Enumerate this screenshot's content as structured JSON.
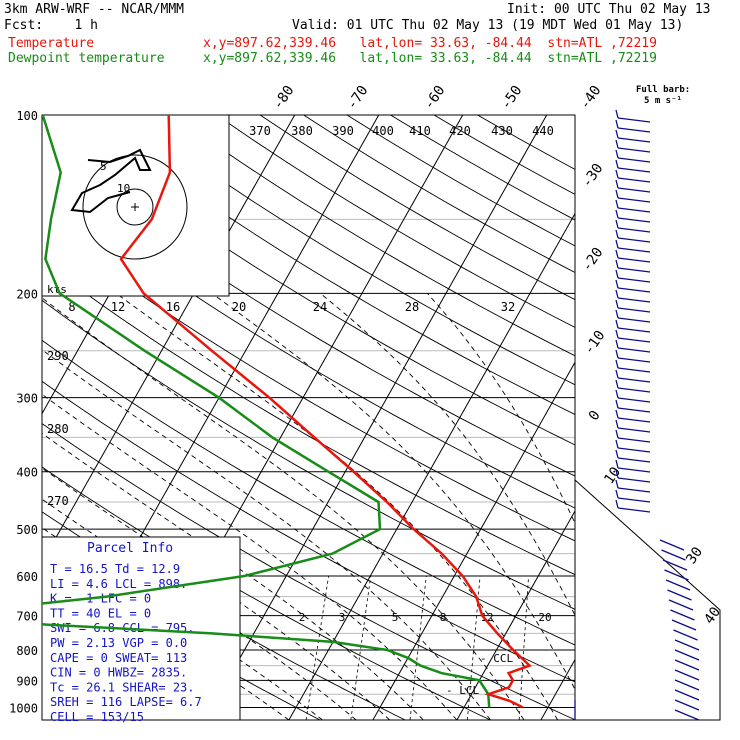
{
  "header": {
    "model": "3km ARW-WRF -- NCAR/MMM",
    "init": "Init: 00 UTC Thu 02 May 13",
    "fcst": "Fcst:    1 h",
    "valid": "Valid: 01 UTC Thu 02 May 13 (19 MDT Wed 01 May 13)",
    "temp_label": "Temperature",
    "temp_info": "x,y=897.62,339.46   lat,lon= 33.63, -84.44  stn=ATL ,72219",
    "dew_label": "Dewpoint temperature",
    "dew_info": "x,y=897.62,339.46   lat,lon= 33.63, -84.44  stn=ATL ,72219"
  },
  "colors": {
    "temperature": "#e8160c",
    "dewpoint": "#178c17",
    "parcel": "#1414c8",
    "wind": "#0c0c8c",
    "isobar": "#000000",
    "background": "#ffffff"
  },
  "wind_legend": {
    "title": "Full barb:",
    "value": "5 m s⁻¹"
  },
  "parcel_info": {
    "title": "Parcel Info",
    "rows": [
      "T   =   16.5  Td =  12.9",
      "LI  =    4.6  LCL =  898.",
      "K   =     -1  LFC =     0",
      "TT  =     40  EL  =     0",
      "SWI =    6.8  CCL =  795.",
      "PW  =   2.13  VGP =   0.0",
      "CAPE =     0  SWEAT=   113",
      "CIN  =     0  HWBZ= 2835.",
      "Tc  =   26.1  SHEAR=   23.",
      "SREH =   116  LAPSE=   6.7",
      "CELL = 153/15"
    ]
  },
  "annotations": {
    "ccl": "- CCL",
    "lcl": "- LCL",
    "hodo_unit": "kts",
    "hodo_ring1": "5",
    "hodo_ring2": "10"
  },
  "chart_data": {
    "type": "skew-t",
    "pressure_levels": [
      100,
      200,
      300,
      400,
      500,
      600,
      700,
      800,
      900,
      1000
    ],
    "pressure_labels": [
      "100",
      "200",
      "300",
      "400",
      "500",
      "600",
      "700",
      "800",
      "900",
      "1000"
    ],
    "isotherm_labels": [
      "-80",
      "-70",
      "-60",
      "-50",
      "-40",
      "-30",
      "-20",
      "-10",
      "0",
      "10",
      "30",
      "40"
    ],
    "theta_e_labels": [
      "370",
      "380",
      "390",
      "400",
      "410",
      "420",
      "430",
      "440"
    ],
    "theta_labels": [
      "290",
      "280",
      "270"
    ],
    "mixing_ratio_labels": [
      "2",
      "3",
      "5",
      "8",
      "12",
      "20"
    ],
    "mixing_ratio_top_labels": [
      "8",
      "12",
      "16",
      "20",
      "24",
      "28",
      "32"
    ],
    "temperature_profile": [
      {
        "p": 1000,
        "t": 17
      },
      {
        "p": 975,
        "t": 15
      },
      {
        "p": 950,
        "t": 12
      },
      {
        "p": 925,
        "t": 14
      },
      {
        "p": 900,
        "t": 14
      },
      {
        "p": 875,
        "t": 13
      },
      {
        "p": 850,
        "t": 15
      },
      {
        "p": 800,
        "t": 12
      },
      {
        "p": 750,
        "t": 9
      },
      {
        "p": 700,
        "t": 6
      },
      {
        "p": 650,
        "t": 4
      },
      {
        "p": 600,
        "t": 1
      },
      {
        "p": 550,
        "t": -3
      },
      {
        "p": 500,
        "t": -8
      },
      {
        "p": 450,
        "t": -13
      },
      {
        "p": 400,
        "t": -19
      },
      {
        "p": 350,
        "t": -26
      },
      {
        "p": 300,
        "t": -34
      },
      {
        "p": 250,
        "t": -44
      },
      {
        "p": 200,
        "t": -56
      },
      {
        "p": 175,
        "t": -61
      },
      {
        "p": 150,
        "t": -60
      },
      {
        "p": 125,
        "t": -61
      },
      {
        "p": 100,
        "t": -65
      }
    ],
    "dewpoint_profile": [
      {
        "p": 1000,
        "t": 13
      },
      {
        "p": 950,
        "t": 12
      },
      {
        "p": 900,
        "t": 10
      },
      {
        "p": 875,
        "t": 5
      },
      {
        "p": 850,
        "t": 2
      },
      {
        "p": 825,
        "t": 0
      },
      {
        "p": 800,
        "t": -3
      },
      {
        "p": 775,
        "t": -10
      },
      {
        "p": 750,
        "t": -25
      },
      {
        "p": 725,
        "t": -45
      },
      {
        "p": 700,
        "t": -60
      },
      {
        "p": 650,
        "t": -40
      },
      {
        "p": 600,
        "t": -25
      },
      {
        "p": 550,
        "t": -16
      },
      {
        "p": 500,
        "t": -12
      },
      {
        "p": 450,
        "t": -14
      },
      {
        "p": 400,
        "t": -22
      },
      {
        "p": 350,
        "t": -31
      },
      {
        "p": 300,
        "t": -40
      },
      {
        "p": 250,
        "t": -52
      },
      {
        "p": 200,
        "t": -66
      },
      {
        "p": 175,
        "t": -70
      },
      {
        "p": 150,
        "t": -72
      },
      {
        "p": 125,
        "t": -74
      },
      {
        "p": 100,
        "t": -80
      }
    ],
    "grid": true
  }
}
